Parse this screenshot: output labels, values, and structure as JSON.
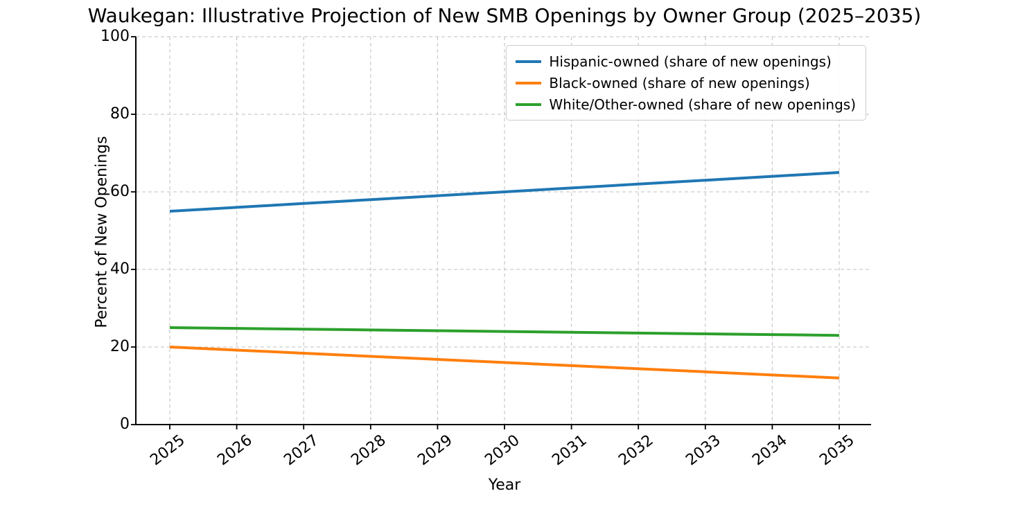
{
  "chart_data": {
    "type": "line",
    "title": "Waukegan: Illustrative Projection of New SMB Openings by Owner Group (2025–2035)",
    "xlabel": "Year",
    "ylabel": "Percent of New Openings",
    "x": [
      2025,
      2026,
      2027,
      2028,
      2029,
      2030,
      2031,
      2032,
      2033,
      2034,
      2035
    ],
    "ylim": [
      0,
      100
    ],
    "yticks": [
      0,
      20,
      40,
      60,
      80,
      100
    ],
    "grid": "dashed-both-axes",
    "legend_position": "upper right",
    "series": [
      {
        "name": "Hispanic-owned (share of new openings)",
        "color": "#1f77b4",
        "values": [
          55,
          56,
          57,
          58,
          59,
          60,
          61,
          62,
          63,
          64,
          65
        ]
      },
      {
        "name": "Black-owned (share of new openings)",
        "color": "#ff7f0e",
        "values": [
          20,
          19.2,
          18.4,
          17.6,
          16.8,
          16,
          15.2,
          14.4,
          13.6,
          12.8,
          12
        ]
      },
      {
        "name": "White/Other-owned (share of new openings)",
        "color": "#2ca02c",
        "values": [
          25,
          24.8,
          24.6,
          24.4,
          24.2,
          24,
          23.8,
          23.6,
          23.4,
          23.2,
          23
        ]
      }
    ],
    "colors": {
      "grid": "#cccccc",
      "axis": "#000000",
      "text": "#000000",
      "background": "#ffffff"
    }
  }
}
